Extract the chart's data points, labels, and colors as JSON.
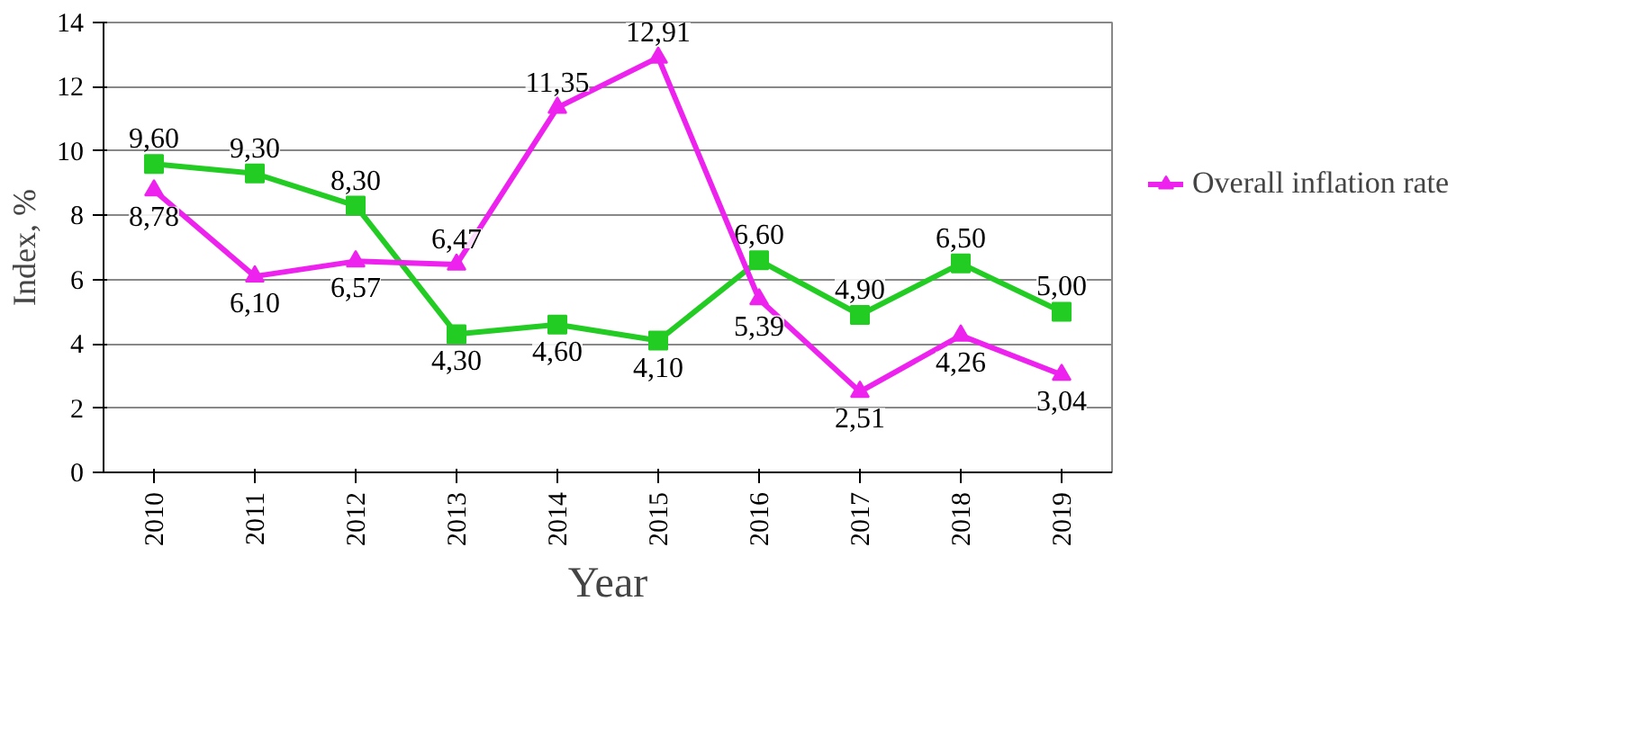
{
  "chart_data": {
    "type": "line",
    "xlabel": "Year",
    "ylabel": "Index, %",
    "categories": [
      "2010",
      "2011",
      "2012",
      "2013",
      "2014",
      "2015",
      "2016",
      "2017",
      "2018",
      "2019"
    ],
    "ylim": [
      0,
      14
    ],
    "yticks": [
      0,
      2,
      4,
      6,
      8,
      10,
      12,
      14
    ],
    "grid": "y",
    "legend": "right",
    "series": [
      {
        "color": "#22cc22",
        "marker": "square",
        "values": [
          9.6,
          9.3,
          8.3,
          4.3,
          4.6,
          4.1,
          6.6,
          4.9,
          6.5,
          5.0
        ],
        "value_labels": [
          "9,60",
          "9,30",
          "8,30",
          "4,30",
          "4,60",
          "4,10",
          "6,60",
          "4,90",
          "6,50",
          "5,00"
        ]
      },
      {
        "name": "Overall inflation rate",
        "color": "#ee22ee",
        "marker": "triangle",
        "values": [
          8.78,
          6.1,
          6.57,
          6.47,
          11.35,
          12.91,
          5.39,
          2.51,
          4.26,
          3.04
        ],
        "value_labels": [
          "8,78",
          "6,10",
          "6,57",
          "6,47",
          "11,35",
          "12,91",
          "5,39",
          "2,51",
          "4,26",
          "3,04"
        ]
      }
    ]
  }
}
